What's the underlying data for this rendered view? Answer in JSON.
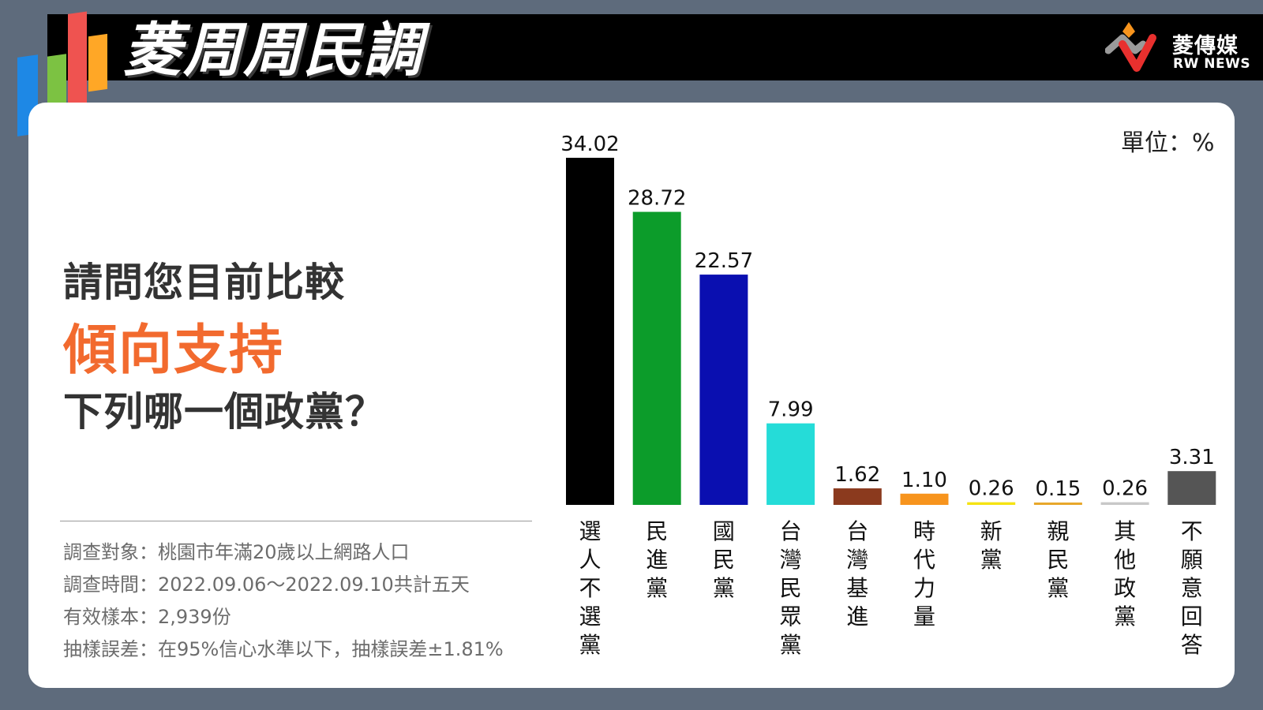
{
  "header": {
    "title": "菱周周民調",
    "brand_name": "菱傳媒",
    "brand_sub": "RW NEWS",
    "logo_bar_colors": [
      "#1e88e5",
      "#7cc242",
      "#ef5350",
      "#ffa726"
    ]
  },
  "question": {
    "line1": "請問您目前比較",
    "highlight": "傾向支持",
    "line3": "下列哪一個政黨？"
  },
  "footnotes": [
    "調查對象：桃園市年滿20歲以上網路人口",
    "調查時間：2022.09.06～2022.09.10共計五天",
    "有效樣本：2,939份",
    "抽樣誤差：在95%信心水準以下，抽樣誤差±1.81%"
  ],
  "chart_data": {
    "type": "bar",
    "unit_label": "單位：%",
    "categories": [
      "選人不選黨",
      "民進黨",
      "國民黨",
      "台灣民眾黨",
      "台灣基進",
      "時代力量",
      "新黨",
      "親民黨",
      "其他政黨",
      "不願意回答"
    ],
    "values": [
      34.02,
      28.72,
      22.57,
      7.99,
      1.62,
      1.1,
      0.26,
      0.15,
      0.26,
      3.31
    ],
    "value_labels": [
      "34.02",
      "28.72",
      "22.57",
      "7.99",
      "1.62",
      "1.10",
      "0.26",
      "0.15",
      "0.26",
      "3.31"
    ],
    "colors": [
      "#000000",
      "#0c9c2a",
      "#0a0fb0",
      "#25dcd8",
      "#8b3a1e",
      "#f7941d",
      "#f5e312",
      "#e8a72a",
      "#c8c8c8",
      "#555555"
    ],
    "ylim": [
      0,
      34.02
    ]
  }
}
